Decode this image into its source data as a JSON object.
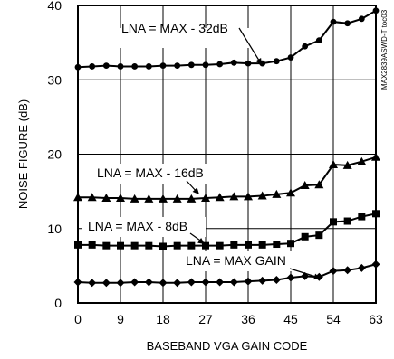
{
  "chart_data": {
    "type": "line",
    "xlabel": "BASEBAND VGA GAIN CODE",
    "ylabel": "NOISE FIGURE (dB)",
    "figure_id": "MAX2839ASWD-T toc03",
    "xlim": [
      0,
      63
    ],
    "ylim": [
      0,
      40
    ],
    "xticks": [
      "0",
      "9",
      "18",
      "27",
      "36",
      "45",
      "54",
      "63"
    ],
    "yticks": [
      "0",
      "10",
      "20",
      "30",
      "40"
    ],
    "grid": true,
    "series": [
      {
        "name": "LNA = MAX - 32dB",
        "marker": "circle",
        "x": [
          0,
          3,
          6,
          9,
          12,
          15,
          18,
          21,
          24,
          27,
          30,
          33,
          36,
          39,
          42,
          45,
          48,
          51,
          54,
          57,
          60,
          63
        ],
        "y": [
          31.7,
          31.8,
          31.9,
          31.8,
          31.8,
          31.8,
          31.9,
          31.9,
          32.0,
          32.0,
          32.1,
          32.3,
          32.2,
          32.2,
          32.5,
          33.0,
          34.5,
          35.3,
          37.8,
          37.6,
          38.2,
          39.3
        ]
      },
      {
        "name": "LNA = MAX - 16dB",
        "marker": "triangle",
        "x": [
          0,
          3,
          6,
          9,
          12,
          15,
          18,
          21,
          24,
          27,
          30,
          33,
          36,
          39,
          42,
          45,
          48,
          51,
          54,
          57,
          60,
          63
        ],
        "y": [
          14.2,
          14.2,
          14.1,
          14.1,
          14.0,
          14.0,
          14.0,
          14.0,
          14.0,
          14.1,
          14.2,
          14.3,
          14.3,
          14.4,
          14.6,
          14.8,
          15.8,
          15.9,
          18.6,
          18.5,
          19.0,
          19.6
        ]
      },
      {
        "name": "LNA = MAX - 8dB",
        "marker": "square",
        "x": [
          0,
          3,
          6,
          9,
          12,
          15,
          18,
          21,
          24,
          27,
          30,
          33,
          36,
          39,
          42,
          45,
          48,
          51,
          54,
          57,
          60,
          63
        ],
        "y": [
          7.8,
          7.8,
          7.7,
          7.7,
          7.7,
          7.7,
          7.6,
          7.7,
          7.7,
          7.7,
          7.7,
          7.8,
          7.8,
          7.8,
          7.9,
          8.0,
          8.9,
          9.1,
          10.9,
          11.0,
          11.6,
          12.0
        ]
      },
      {
        "name": "LNA = MAX GAIN",
        "marker": "diamond",
        "x": [
          0,
          3,
          6,
          9,
          12,
          15,
          18,
          21,
          24,
          27,
          30,
          33,
          36,
          39,
          42,
          45,
          48,
          51,
          54,
          57,
          60,
          63
        ],
        "y": [
          2.8,
          2.7,
          2.7,
          2.7,
          2.8,
          2.8,
          2.7,
          2.7,
          2.8,
          2.8,
          2.8,
          2.8,
          2.9,
          3.0,
          3.1,
          3.4,
          3.6,
          3.5,
          4.3,
          4.4,
          4.7,
          5.2
        ]
      }
    ]
  }
}
